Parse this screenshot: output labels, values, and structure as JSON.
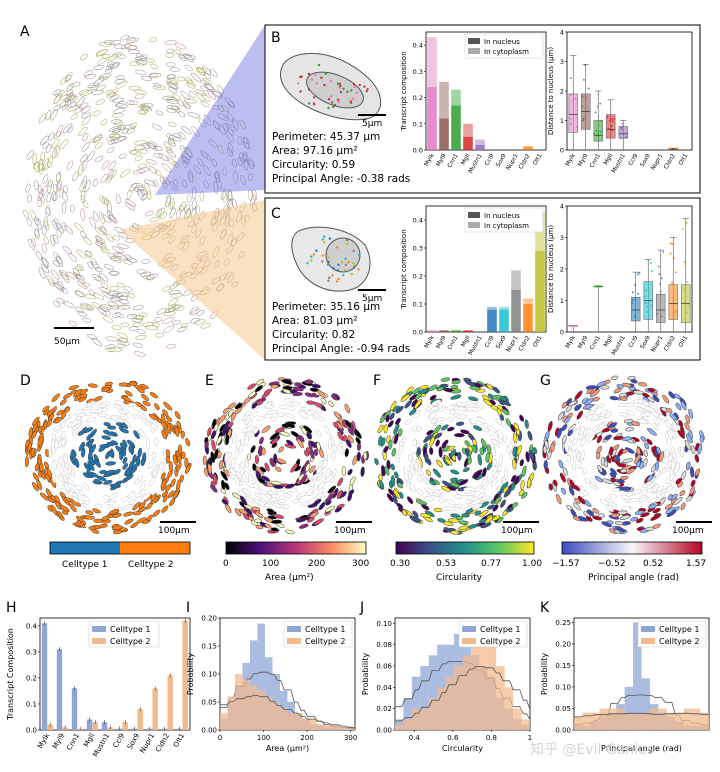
{
  "panels": {
    "A": {
      "letter": "A",
      "scalebar": "50µm"
    },
    "B": {
      "letter": "B",
      "scalebar": "5µm",
      "stats": [
        "Perimeter: 45.37 µm",
        "Area: 97.16 µm²",
        "Circularity: 0.59",
        "Principal Angle: -0.38 rads"
      ]
    },
    "C": {
      "letter": "C",
      "scalebar": "5µm",
      "stats": [
        "Perimeter: 35.16 µm",
        "Area: 81.03 µm²",
        "Circularity: 0.82",
        "Principal Angle: -0.94 rads"
      ]
    },
    "D": {
      "letter": "D",
      "scalebar": "100µm",
      "cbar_labels": [
        "Celltype 1",
        "Celltype 2"
      ]
    },
    "E": {
      "letter": "E",
      "scalebar": "100µm",
      "ticks": [
        "0",
        "100",
        "200",
        "300"
      ],
      "cbar_title": "Area (µm²)"
    },
    "F": {
      "letter": "F",
      "scalebar": "100µm",
      "ticks": [
        "0.30",
        "0.53",
        "0.77",
        "1.00"
      ],
      "cbar_title": "Circularity"
    },
    "G": {
      "letter": "G",
      "scalebar": "100µm",
      "ticks": [
        "−1.57",
        "−0.52",
        "0.52",
        "1.57"
      ],
      "cbar_title": "Principal angle (rad)"
    },
    "H": {
      "letter": "H"
    },
    "I": {
      "letter": "I"
    },
    "J": {
      "letter": "J"
    },
    "K": {
      "letter": "K"
    }
  },
  "colors": {
    "celltype1": "#1f77b4",
    "celltype2": "#ff7f0e",
    "hist1": "#8ea5d6",
    "hist2": "#f2b98d",
    "gray": "#bdbdbd"
  },
  "genes": [
    "Mylk",
    "Myl9",
    "Cnn1",
    "Mgll",
    "Mustn1",
    "Ccl9",
    "Sox9",
    "Nupr1",
    "Cldn2",
    "Olt1"
  ],
  "gene_colors": [
    "#e377c2",
    "#8c564b",
    "#2ca02c",
    "#d62728",
    "#9467bd",
    "#1f77b4",
    "#17becf",
    "#7f7f7f",
    "#ff7f0e",
    "#bcbd22"
  ],
  "watermark": "知乎 @Evil Genius",
  "chart_data": [
    {
      "panel": "B-bar",
      "type": "bar",
      "ylabel": "Transcript composition",
      "ylim": [
        0,
        0.45
      ],
      "yticks": [
        "0.0",
        "0.1",
        "0.2",
        "0.3",
        "0.4"
      ],
      "legend": [
        "In nucleus",
        "In cytoplasm"
      ],
      "nucleus": [
        0.24,
        0.12,
        0.17,
        0.05,
        0.02,
        0,
        0,
        0,
        0.01,
        0
      ],
      "cytoplasm": [
        0.19,
        0.14,
        0.06,
        0.05,
        0.02,
        0,
        0,
        0,
        0.005,
        0
      ]
    },
    {
      "panel": "B-box",
      "type": "box",
      "ylabel": "Distance to nucleus (µm)",
      "ylim": [
        0,
        4
      ],
      "yticks": [
        "0",
        "1",
        "2",
        "3",
        "4"
      ],
      "median": [
        1.2,
        1.3,
        0.5,
        0.7,
        0.55,
        0,
        0,
        0,
        0.05,
        0
      ],
      "q1": [
        0.6,
        0.7,
        0.3,
        0.4,
        0.4,
        0,
        0,
        0,
        0.05,
        0
      ],
      "q3": [
        1.9,
        1.9,
        1.0,
        1.2,
        0.8,
        0,
        0,
        0,
        0.05,
        0
      ],
      "whisker": [
        3.2,
        2.9,
        2.0,
        1.7,
        1.0,
        0,
        0,
        0,
        0.05,
        0
      ]
    },
    {
      "panel": "C-bar",
      "type": "bar",
      "ylabel": "Transcript composition",
      "ylim": [
        0,
        0.45
      ],
      "yticks": [
        "0.0",
        "0.1",
        "0.2",
        "0.3",
        "0.4"
      ],
      "legend": [
        "In nucleus",
        "In cytoplasm"
      ],
      "nucleus": [
        0.005,
        0.005,
        0.005,
        0.005,
        0,
        0.08,
        0.08,
        0.15,
        0.1,
        0.29
      ],
      "cytoplasm": [
        0.002,
        0.002,
        0.002,
        0.002,
        0,
        0.01,
        0.01,
        0.07,
        0.02,
        0.14
      ]
    },
    {
      "panel": "C-box",
      "type": "box",
      "ylabel": "Distance to nucleus (µm)",
      "ylim": [
        0,
        4
      ],
      "yticks": [
        "0",
        "1",
        "2",
        "3",
        "4"
      ],
      "median": [
        0.2,
        0,
        1.45,
        0,
        0,
        0.7,
        1.0,
        0.7,
        0.9,
        0.9
      ],
      "q1": [
        0.2,
        0,
        1.45,
        0,
        0,
        0.35,
        0.4,
        0.3,
        0.4,
        0.3
      ],
      "q3": [
        0.2,
        0,
        1.45,
        0,
        0,
        1.1,
        1.6,
        1.2,
        1.5,
        1.5
      ],
      "whisker": [
        0.2,
        0,
        1.45,
        0,
        0,
        1.9,
        2.3,
        2.6,
        3.0,
        3.6
      ]
    },
    {
      "panel": "H",
      "type": "bar",
      "ylabel": "Transcript Composition",
      "ylim": [
        0,
        0.43
      ],
      "yticks": [
        "0.0",
        "0.1",
        "0.2",
        "0.3",
        "0.4"
      ],
      "series": [
        {
          "name": "Celltype 1",
          "values": [
            0.41,
            0.31,
            0.16,
            0.04,
            0.03,
            0.005,
            0.005,
            0.005,
            0.005,
            0.005
          ]
        },
        {
          "name": "Celltype 2",
          "values": [
            0.02,
            0.01,
            0.005,
            0.03,
            0.01,
            0.03,
            0.08,
            0.16,
            0.21,
            0.42
          ]
        }
      ]
    },
    {
      "panel": "I",
      "type": "histogram",
      "ylabel": "Probability",
      "xlabel": "Area (µm²)",
      "xlim": [
        0,
        310
      ],
      "ylim": [
        0,
        0.2
      ],
      "xticks": [
        "0",
        "100",
        "200",
        "300"
      ],
      "yticks": [
        "0.00",
        "0.05",
        "0.10",
        "0.15",
        "0.20"
      ],
      "legend": [
        "Celltype 1",
        "Celltype 2"
      ],
      "series": [
        {
          "name": "Celltype 1",
          "values": [
            0.02,
            0.05,
            0.08,
            0.12,
            0.16,
            0.19,
            0.13,
            0.1,
            0.07,
            0.05,
            0.03,
            0.02,
            0.01,
            0.01,
            0.005,
            0.005,
            0.003,
            0.002
          ]
        },
        {
          "name": "Celltype 2",
          "values": [
            0.03,
            0.06,
            0.1,
            0.09,
            0.08,
            0.07,
            0.06,
            0.05,
            0.04,
            0.03,
            0.03,
            0.02,
            0.02,
            0.01,
            0.01,
            0.008,
            0.005,
            0.003
          ]
        }
      ]
    },
    {
      "panel": "J",
      "type": "histogram",
      "ylabel": "Probability",
      "xlabel": "Circularity",
      "xlim": [
        0.3,
        1.0
      ],
      "ylim": [
        0,
        0.105
      ],
      "xticks": [
        "0.4",
        "0.6",
        "0.8",
        "1"
      ],
      "yticks": [
        "0.00",
        "0.02",
        "0.04",
        "0.06",
        "0.08",
        "0.10"
      ],
      "legend": [
        "Celltype 1",
        "Celltype 2"
      ],
      "series": [
        {
          "name": "Celltype 1",
          "values": [
            0.01,
            0.03,
            0.05,
            0.06,
            0.07,
            0.08,
            0.08,
            0.09,
            0.08,
            0.07,
            0.06,
            0.05,
            0.03,
            0.02,
            0.01,
            0.005
          ]
        },
        {
          "name": "Celltype 2",
          "values": [
            0.005,
            0.01,
            0.02,
            0.02,
            0.03,
            0.04,
            0.05,
            0.06,
            0.07,
            0.08,
            0.09,
            0.08,
            0.06,
            0.04,
            0.02,
            0.01
          ]
        }
      ]
    },
    {
      "panel": "K",
      "type": "histogram",
      "ylabel": "Probability",
      "xlabel": "Principal angle (rad)",
      "xlim": [
        -1.6,
        1.6
      ],
      "ylim": [
        0,
        0.26
      ],
      "yticks": [
        "0.00",
        "0.05",
        "0.10",
        "0.15",
        "0.20",
        "0.25"
      ],
      "legend": [
        "Celltype 1",
        "Celltype 2"
      ],
      "series": [
        {
          "name": "Celltype 1",
          "values": [
            0.01,
            0.01,
            0.02,
            0.03,
            0.04,
            0.06,
            0.1,
            0.25,
            0.12,
            0.06,
            0.04,
            0.03,
            0.02,
            0.01,
            0.01,
            0.01
          ]
        },
        {
          "name": "Celltype 2",
          "values": [
            0.03,
            0.04,
            0.04,
            0.05,
            0.05,
            0.05,
            0.04,
            0.04,
            0.04,
            0.05,
            0.05,
            0.04,
            0.04,
            0.05,
            0.05,
            0.04
          ]
        }
      ]
    }
  ]
}
